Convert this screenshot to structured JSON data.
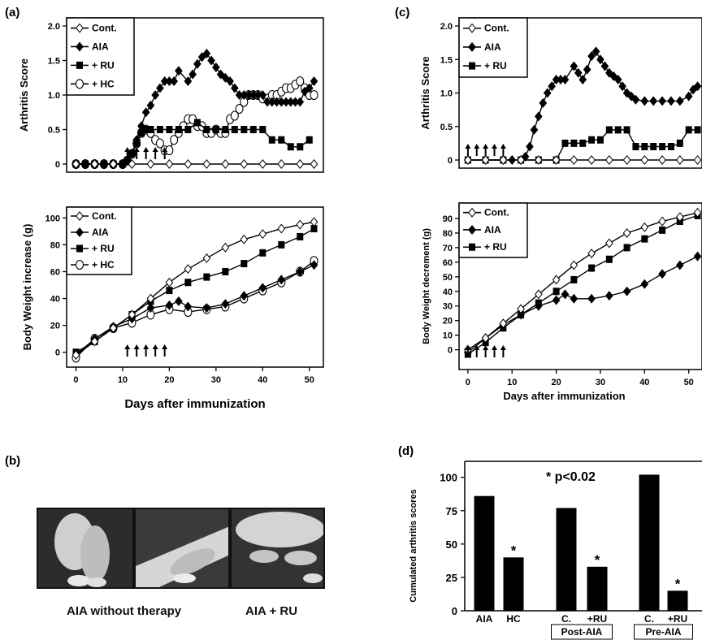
{
  "panel_labels": {
    "a": "(a)",
    "b": "(b)",
    "c": "(c)",
    "d": "(d)"
  },
  "chart_data": [
    {
      "panel": "(a) top",
      "type": "line",
      "ylabel": "Arthritis Score",
      "yticks": [
        "0",
        "0.5",
        "1.0",
        "1.5",
        "2.0"
      ],
      "ylim": [
        0,
        2.0
      ],
      "xlim": [
        0,
        52
      ],
      "legend": [
        "Cont.",
        "AIA",
        "+ RU",
        "+ HC"
      ],
      "legend_position": "top-left",
      "treatment_arrow_days": [
        11,
        13,
        15,
        17,
        19
      ],
      "series": [
        {
          "name": "Cont.",
          "marker": "diamond-open",
          "x": [
            0,
            4,
            8,
            12,
            16,
            20,
            24,
            28,
            32,
            36,
            40,
            44,
            48,
            51
          ],
          "y": [
            0,
            0,
            0,
            0,
            0,
            0,
            0,
            0,
            0,
            0,
            0,
            0,
            0,
            0
          ]
        },
        {
          "name": "AIA",
          "marker": "diamond-filled",
          "x": [
            0,
            2,
            4,
            6,
            8,
            10,
            11,
            12,
            13,
            14,
            15,
            16,
            17,
            18,
            19,
            20,
            21,
            22,
            24,
            25,
            26,
            27,
            28,
            29,
            30,
            31,
            32,
            33,
            34,
            35,
            36,
            37,
            38,
            39,
            40,
            41,
            42,
            43,
            44,
            45,
            46,
            47,
            48,
            49,
            50,
            51
          ],
          "y": [
            0,
            0,
            0,
            0,
            0,
            0,
            0.05,
            0.15,
            0.35,
            0.55,
            0.75,
            0.85,
            1.0,
            1.1,
            1.2,
            1.2,
            1.2,
            1.35,
            1.2,
            1.3,
            1.45,
            1.55,
            1.6,
            1.5,
            1.4,
            1.3,
            1.25,
            1.2,
            1.1,
            1.0,
            1.0,
            1.0,
            1.0,
            1.0,
            1.0,
            0.9,
            0.9,
            0.9,
            0.9,
            0.9,
            0.9,
            0.9,
            0.9,
            1.05,
            1.1,
            1.2
          ]
        },
        {
          "name": "+ RU",
          "marker": "square-filled",
          "x": [
            0,
            2,
            4,
            6,
            8,
            10,
            11,
            12,
            13,
            14,
            15,
            16,
            18,
            20,
            22,
            24,
            26,
            28,
            30,
            32,
            34,
            36,
            38,
            40,
            42,
            44,
            46,
            48,
            50
          ],
          "y": [
            0,
            0,
            0,
            0,
            0,
            0,
            0.05,
            0.15,
            0.3,
            0.45,
            0.5,
            0.5,
            0.5,
            0.5,
            0.5,
            0.5,
            0.6,
            0.5,
            0.5,
            0.5,
            0.5,
            0.5,
            0.5,
            0.5,
            0.35,
            0.35,
            0.25,
            0.25,
            0.35
          ]
        },
        {
          "name": "+ HC",
          "marker": "circle-open",
          "x": [
            0,
            2,
            4,
            6,
            8,
            10,
            11,
            12,
            13,
            14,
            15,
            16,
            17,
            18,
            19,
            20,
            21,
            22,
            23,
            24,
            25,
            26,
            27,
            28,
            29,
            30,
            31,
            32,
            33,
            34,
            35,
            36,
            37,
            38,
            39,
            40,
            41,
            42,
            43,
            44,
            45,
            46,
            47,
            48,
            49,
            50,
            51
          ],
          "y": [
            0,
            0,
            0,
            0,
            0,
            0,
            0.05,
            0.15,
            0.3,
            0.45,
            0.5,
            0.45,
            0.35,
            0.3,
            0.2,
            0.2,
            0.35,
            0.45,
            0.55,
            0.65,
            0.65,
            0.55,
            0.55,
            0.45,
            0.45,
            0.5,
            0.45,
            0.45,
            0.65,
            0.7,
            0.8,
            0.9,
            1.0,
            1.0,
            1.0,
            0.95,
            0.95,
            1.0,
            1.0,
            1.05,
            1.1,
            1.1,
            1.15,
            1.2,
            1.1,
            1.0,
            1.0
          ]
        }
      ]
    },
    {
      "panel": "(a) bottom",
      "type": "line",
      "ylabel": "Body Weight increase (g)",
      "xlabel": "Days after immunization",
      "yticks": [
        "0",
        "20",
        "40",
        "60",
        "80",
        "100"
      ],
      "xticks": [
        "0",
        "10",
        "20",
        "30",
        "40",
        "50"
      ],
      "ylim": [
        -5,
        102
      ],
      "xlim": [
        -2,
        53
      ],
      "legend": [
        "Cont.",
        "AIA",
        "+ RU",
        "+ HC"
      ],
      "legend_position": "top-left",
      "treatment_arrow_days": [
        11,
        13,
        15,
        17,
        19
      ],
      "series": [
        {
          "name": "Cont.",
          "marker": "diamond-open",
          "x": [
            0,
            4,
            8,
            12,
            16,
            20,
            24,
            28,
            32,
            36,
            40,
            44,
            48,
            51
          ],
          "y": [
            -2,
            8,
            18,
            28,
            40,
            52,
            62,
            70,
            78,
            84,
            88,
            92,
            95,
            97
          ]
        },
        {
          "name": "AIA",
          "marker": "diamond-filled",
          "x": [
            0,
            4,
            8,
            12,
            16,
            20,
            22,
            24,
            28,
            32,
            36,
            40,
            44,
            48,
            51
          ],
          "y": [
            -2,
            10,
            19,
            25,
            33,
            35,
            38,
            34,
            33,
            36,
            42,
            48,
            54,
            60,
            65
          ]
        },
        {
          "name": "+ RU",
          "marker": "square-filled",
          "x": [
            0,
            4,
            8,
            12,
            16,
            20,
            24,
            28,
            32,
            36,
            40,
            44,
            48,
            51
          ],
          "y": [
            0,
            8,
            18,
            28,
            38,
            46,
            52,
            56,
            60,
            66,
            74,
            80,
            86,
            92
          ]
        },
        {
          "name": "+ HC",
          "marker": "circle-open",
          "x": [
            0,
            4,
            8,
            12,
            16,
            20,
            24,
            28,
            32,
            36,
            40,
            44,
            48,
            51
          ],
          "y": [
            -4,
            10,
            18,
            22,
            28,
            32,
            30,
            32,
            34,
            40,
            46,
            52,
            60,
            68
          ]
        }
      ]
    },
    {
      "panel": "(c) top",
      "type": "line",
      "ylabel": "Arthritis Score",
      "yticks": [
        "0",
        "0.5",
        "1.0",
        "1.5",
        "2.0"
      ],
      "ylim": [
        0,
        2.0
      ],
      "legend": [
        "Cont.",
        "AIA",
        "+ RU"
      ],
      "legend_position": "top-left",
      "treatment_arrow_days": [
        0,
        2,
        4,
        6,
        8
      ],
      "series": [
        {
          "name": "Cont.",
          "marker": "diamond-open",
          "x": [
            0,
            4,
            8,
            12,
            16,
            20,
            24,
            28,
            32,
            36,
            40,
            44,
            48,
            52
          ],
          "y": [
            0,
            0,
            0,
            0,
            0,
            0,
            0,
            0,
            0,
            0,
            0,
            0,
            0,
            0
          ]
        },
        {
          "name": "AIA",
          "marker": "diamond-filled",
          "x": [
            0,
            4,
            8,
            10,
            12,
            13,
            14,
            15,
            16,
            17,
            18,
            19,
            20,
            21,
            22,
            24,
            25,
            26,
            27,
            28,
            29,
            30,
            31,
            32,
            33,
            34,
            35,
            36,
            37,
            38,
            40,
            42,
            44,
            46,
            48,
            50,
            51,
            52
          ],
          "y": [
            0,
            0,
            0,
            0,
            0,
            0.05,
            0.2,
            0.45,
            0.65,
            0.85,
            1.0,
            1.1,
            1.2,
            1.2,
            1.2,
            1.4,
            1.3,
            1.2,
            1.35,
            1.55,
            1.62,
            1.5,
            1.4,
            1.3,
            1.25,
            1.2,
            1.1,
            1.0,
            0.95,
            0.9,
            0.88,
            0.88,
            0.88,
            0.88,
            0.88,
            0.95,
            1.05,
            1.1
          ]
        },
        {
          "name": "+ RU",
          "marker": "square-filled",
          "x": [
            0,
            4,
            8,
            12,
            16,
            20,
            22,
            24,
            26,
            28,
            30,
            32,
            34,
            36,
            38,
            40,
            42,
            44,
            46,
            48,
            50,
            52
          ],
          "y": [
            0,
            0,
            0,
            0,
            0,
            0,
            0.25,
            0.25,
            0.25,
            0.3,
            0.3,
            0.45,
            0.45,
            0.45,
            0.2,
            0.2,
            0.2,
            0.2,
            0.2,
            0.25,
            0.45,
            0.45
          ]
        }
      ]
    },
    {
      "panel": "(c) bottom",
      "type": "line",
      "ylabel": "Body Weight decrement (g)",
      "xlabel": "Days after immunization",
      "yticks": [
        "0",
        "10",
        "20",
        "30",
        "40",
        "50",
        "60",
        "70",
        "80",
        "90"
      ],
      "xticks": [
        "0",
        "10",
        "20",
        "30",
        "40",
        "50"
      ],
      "ylim": [
        -8,
        95
      ],
      "xlim": [
        -2,
        53
      ],
      "legend": [
        "Cont.",
        "AIA",
        "+ RU"
      ],
      "legend_position": "top-left",
      "treatment_arrow_days": [
        0,
        2,
        4,
        6,
        8
      ],
      "series": [
        {
          "name": "Cont.",
          "marker": "diamond-open",
          "x": [
            0,
            4,
            8,
            12,
            16,
            20,
            24,
            28,
            32,
            36,
            40,
            44,
            48,
            52
          ],
          "y": [
            0,
            8,
            18,
            28,
            38,
            48,
            58,
            66,
            73,
            80,
            84,
            88,
            91,
            94
          ]
        },
        {
          "name": "AIA",
          "marker": "diamond-filled",
          "x": [
            0,
            4,
            8,
            12,
            16,
            20,
            22,
            24,
            28,
            32,
            36,
            40,
            44,
            48,
            52
          ],
          "y": [
            -2,
            8,
            17,
            24,
            30,
            34,
            38,
            35,
            35,
            37,
            40,
            45,
            52,
            58,
            64
          ]
        },
        {
          "name": "+ RU",
          "marker": "square-filled",
          "x": [
            0,
            4,
            8,
            12,
            16,
            20,
            24,
            28,
            32,
            36,
            40,
            44,
            48,
            52
          ],
          "y": [
            -3,
            5,
            15,
            24,
            32,
            40,
            48,
            56,
            62,
            70,
            76,
            82,
            88,
            92
          ]
        }
      ]
    },
    {
      "panel": "(d)",
      "type": "bar",
      "ylabel": "Cumulated arthritis scores",
      "yticks": [
        "0",
        "25",
        "50",
        "75",
        "100"
      ],
      "ylim": [
        0,
        112
      ],
      "annotation": "* p<0.02",
      "categories": [
        "AIA",
        "HC",
        "C.",
        "+RU",
        "C.",
        "+RU"
      ],
      "values": [
        86,
        40,
        77,
        33,
        102,
        15
      ],
      "significant": [
        false,
        true,
        false,
        true,
        false,
        true
      ],
      "group_labels": [
        {
          "text": "Post-AIA",
          "covers": [
            2,
            3
          ]
        },
        {
          "text": "Pre-AIA",
          "covers": [
            4,
            5
          ]
        }
      ]
    }
  ],
  "photo_captions": [
    "AIA without therapy",
    "AIA + RU"
  ]
}
